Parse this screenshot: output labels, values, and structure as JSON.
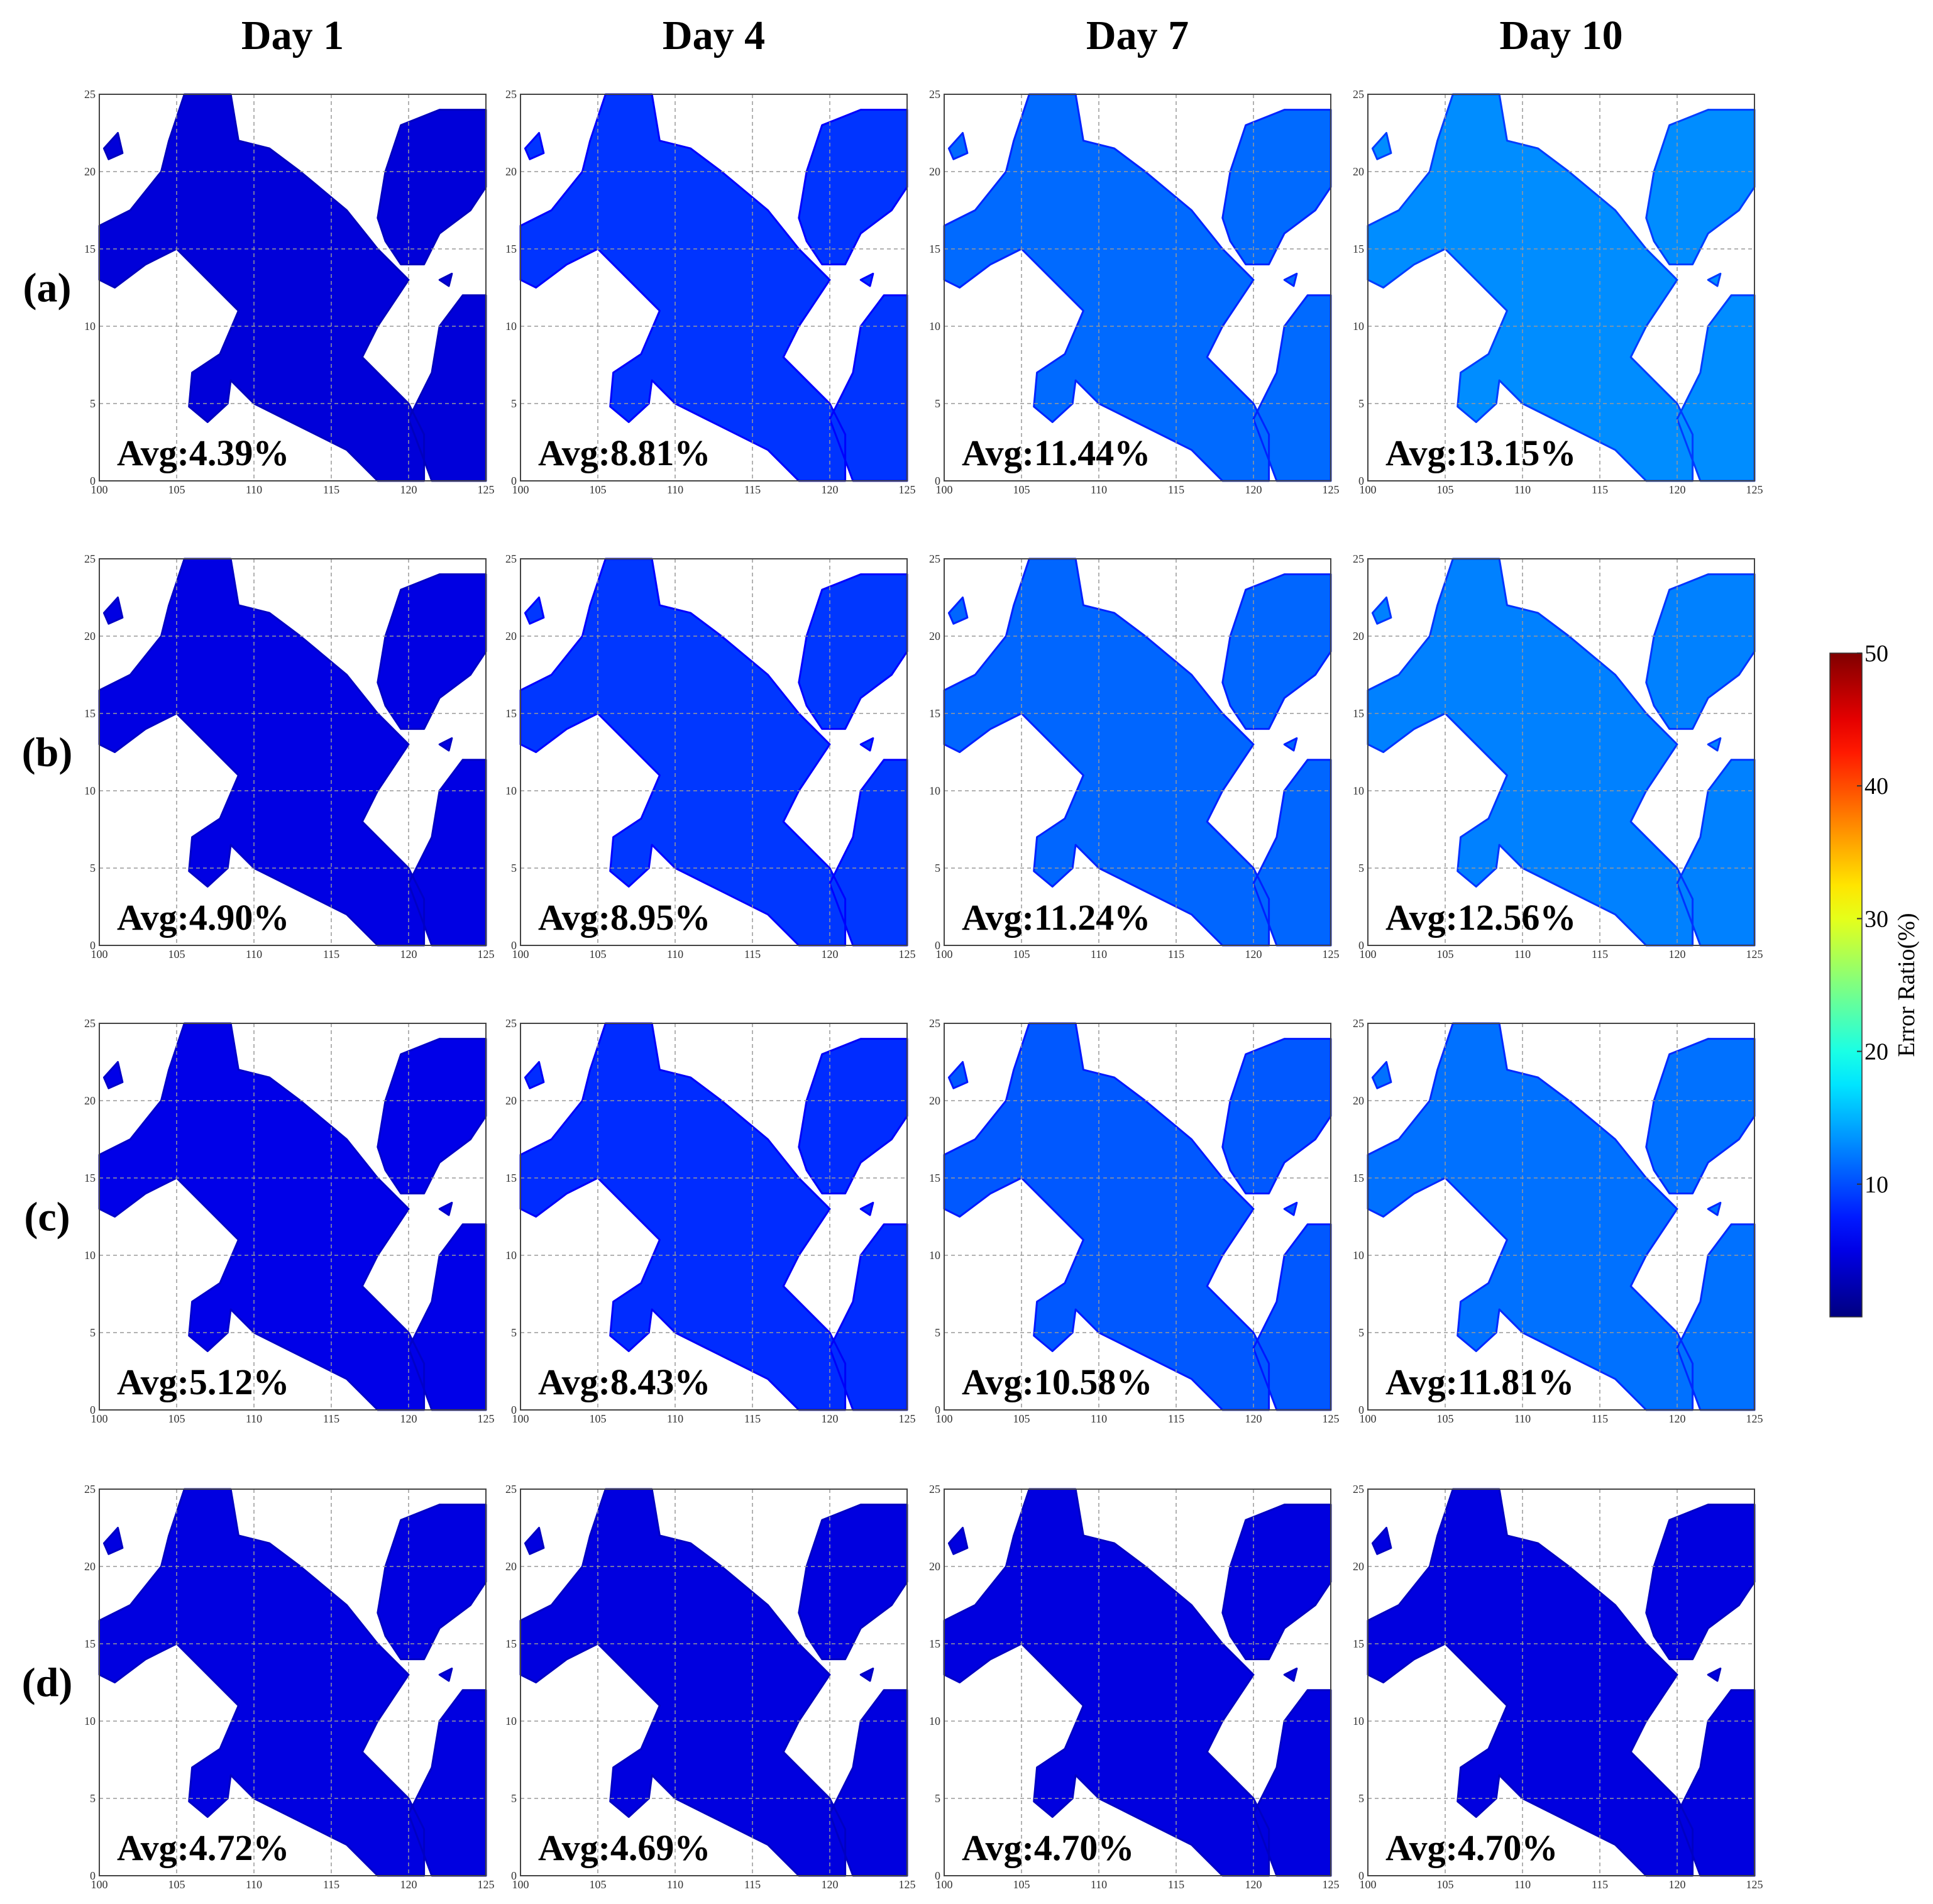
{
  "chart_data": {
    "type": "heatmap-grid",
    "columns": [
      "Day 1",
      "Day 4",
      "Day 7",
      "Day 10"
    ],
    "rows": [
      "(a)",
      "(b)",
      "(c)",
      "(d)"
    ],
    "values": [
      [
        4.39,
        8.81,
        11.44,
        13.15
      ],
      [
        4.9,
        8.95,
        11.24,
        12.56
      ],
      [
        5.12,
        8.43,
        10.58,
        11.81
      ],
      [
        4.72,
        4.69,
        4.7,
        4.7
      ]
    ],
    "value_labels": [
      [
        "Avg:4.39%",
        "Avg:8.81%",
        "Avg:11.44%",
        "Avg:13.15%"
      ],
      [
        "Avg:4.90%",
        "Avg:8.95%",
        "Avg:11.24%",
        "Avg:12.56%"
      ],
      [
        "Avg:5.12%",
        "Avg:8.43%",
        "Avg:10.58%",
        "Avg:11.81%"
      ],
      [
        "Avg:4.72%",
        "Avg:4.69%",
        "Avg:4.70%",
        "Avg:4.70%"
      ]
    ],
    "xlim": [
      100,
      125
    ],
    "xticks": [
      100,
      105,
      110,
      115,
      120,
      125
    ],
    "ylim": [
      0,
      25
    ],
    "yticks": [
      0,
      5,
      10,
      15,
      20,
      25
    ],
    "grid": true,
    "colorbar": {
      "label": "Error Ratio(%)",
      "lim": [
        0,
        50
      ],
      "ticks": [
        10,
        20,
        30,
        40,
        50
      ],
      "colormap": "jet"
    }
  }
}
